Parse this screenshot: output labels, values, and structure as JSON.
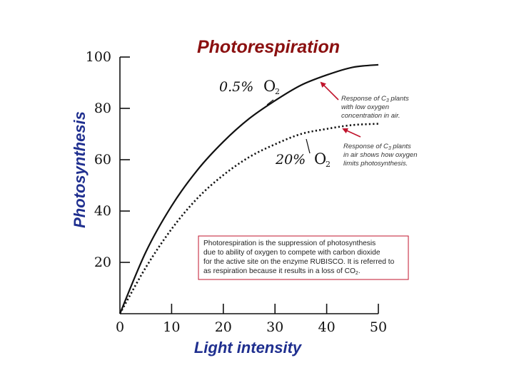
{
  "colors": {
    "title": "#8b1010",
    "axis_title": "#1f2f8f",
    "arrow": "#c0142c",
    "note_border": "#c0142c",
    "line": "#111111"
  },
  "chart_data": {
    "type": "line",
    "title": "Photorespiration",
    "xlabel": "Light intensity",
    "ylabel": "Photosynthesis",
    "xlim": [
      0,
      50
    ],
    "ylim": [
      0,
      100
    ],
    "xticks": [
      0,
      10,
      20,
      30,
      40,
      50
    ],
    "yticks": [
      20,
      40,
      60,
      80,
      100
    ],
    "grid": false,
    "series": [
      {
        "name": "0.5% O2",
        "label_text": "0.5%",
        "label_o2": "O",
        "label_sub": "2",
        "style": "solid",
        "x": [
          0,
          5,
          10,
          15,
          20,
          25,
          30,
          35,
          40,
          45,
          50
        ],
        "y": [
          0,
          24,
          42,
          56,
          67,
          76,
          83,
          89,
          93,
          96,
          97
        ]
      },
      {
        "name": "20% O2",
        "label_text": "20%",
        "label_o2": "O",
        "label_sub": "2",
        "style": "dotted",
        "x": [
          0,
          5,
          10,
          15,
          20,
          25,
          30,
          35,
          40,
          45,
          50
        ],
        "y": [
          0,
          18,
          33,
          45,
          54,
          61,
          66,
          70,
          72,
          73.5,
          74
        ]
      }
    ],
    "annotations": [
      {
        "lines": [
          "Response of C",
          " plants",
          "with low oxygen",
          "concentration in air."
        ],
        "sub": "3"
      },
      {
        "lines": [
          "Response of C",
          " plants",
          "in air shows how oxygen",
          "limits photosynthesis."
        ],
        "sub": "3"
      }
    ],
    "note": {
      "lines": [
        "Photorespiration is the suppression of photosynthesis",
        "due to ability of oxygen to compete with carbon dioxide",
        "for the active site on the enzyme RUBISCO. It is referred to",
        "as respiration because it results in a loss of CO"
      ],
      "last_sub": "2",
      "last_end": "."
    }
  }
}
